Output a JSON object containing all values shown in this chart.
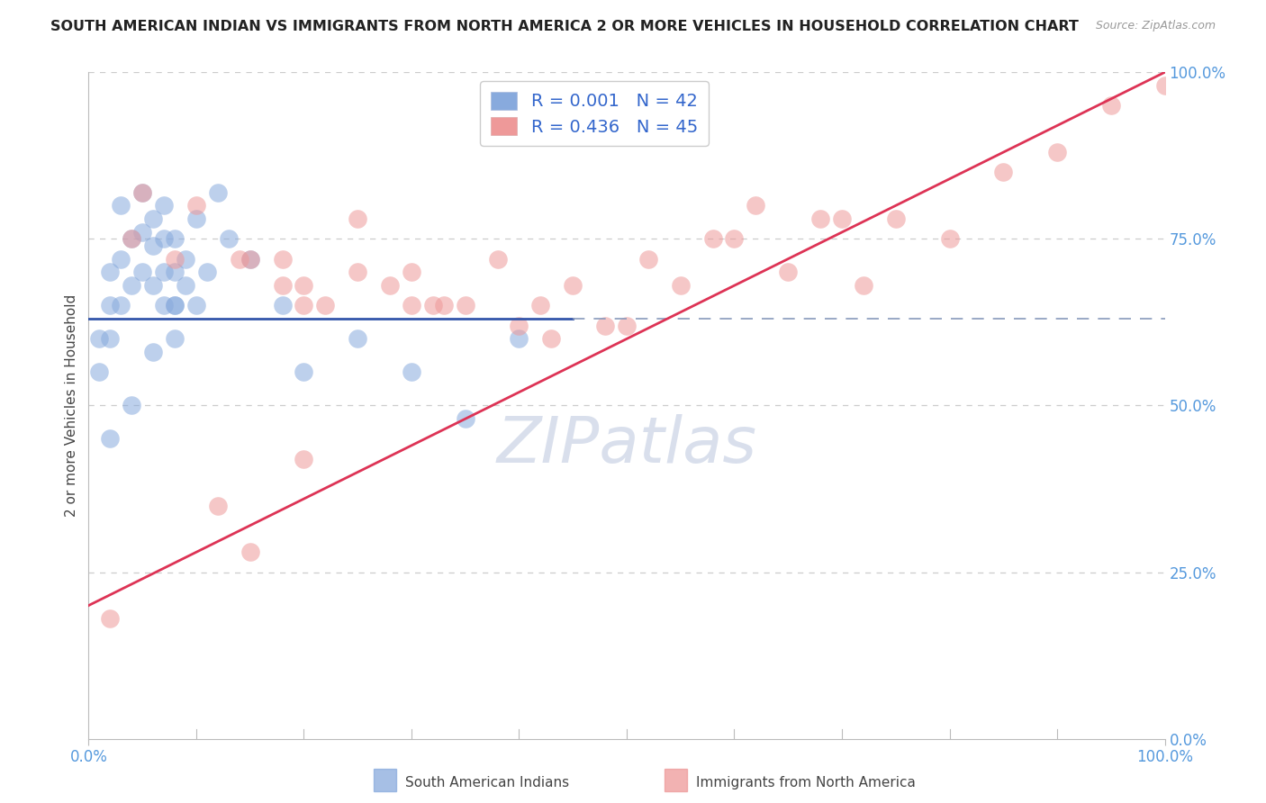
{
  "title": "SOUTH AMERICAN INDIAN VS IMMIGRANTS FROM NORTH AMERICA 2 OR MORE VEHICLES IN HOUSEHOLD CORRELATION CHART",
  "source": "Source: ZipAtlas.com",
  "ylabel": "2 or more Vehicles in Household",
  "xlim": [
    0,
    100
  ],
  "ylim": [
    0,
    100
  ],
  "ytick_labels": [
    "0.0%",
    "25.0%",
    "50.0%",
    "75.0%",
    "100.0%"
  ],
  "ytick_values": [
    0,
    25,
    50,
    75,
    100
  ],
  "legend_label1": "South American Indians",
  "legend_label2": "Immigrants from North America",
  "r1": "0.001",
  "n1": "42",
  "r2": "0.436",
  "n2": "45",
  "color1": "#88AADD",
  "color2": "#EE9999",
  "trendline1_color": "#3355AA",
  "trendline2_color": "#DD3355",
  "background_color": "#FFFFFF",
  "blue_x": [
    1,
    1,
    2,
    2,
    2,
    3,
    3,
    3,
    4,
    4,
    5,
    5,
    5,
    6,
    6,
    6,
    7,
    7,
    7,
    7,
    8,
    8,
    8,
    8,
    9,
    9,
    10,
    10,
    11,
    12,
    13,
    15,
    18,
    20,
    25,
    30,
    35,
    40,
    2,
    4,
    6,
    8
  ],
  "blue_y": [
    60,
    55,
    70,
    65,
    60,
    80,
    72,
    65,
    75,
    68,
    82,
    76,
    70,
    78,
    74,
    68,
    80,
    75,
    70,
    65,
    75,
    70,
    65,
    60,
    72,
    68,
    78,
    65,
    70,
    82,
    75,
    72,
    65,
    55,
    60,
    55,
    48,
    60,
    45,
    50,
    58,
    65
  ],
  "pink_x": [
    2,
    4,
    5,
    8,
    10,
    12,
    14,
    15,
    18,
    18,
    20,
    20,
    22,
    25,
    25,
    28,
    30,
    30,
    32,
    33,
    35,
    38,
    40,
    42,
    43,
    45,
    48,
    50,
    52,
    55,
    58,
    60,
    62,
    65,
    68,
    70,
    72,
    75,
    80,
    85,
    90,
    95,
    100,
    15,
    20
  ],
  "pink_y": [
    18,
    75,
    82,
    72,
    80,
    35,
    72,
    72,
    72,
    68,
    65,
    68,
    65,
    78,
    70,
    68,
    65,
    70,
    65,
    65,
    65,
    72,
    62,
    65,
    60,
    68,
    62,
    62,
    72,
    68,
    75,
    75,
    80,
    70,
    78,
    78,
    68,
    78,
    75,
    85,
    88,
    95,
    98,
    28,
    42
  ],
  "pink_trendline_x0": 0,
  "pink_trendline_y0": 20,
  "pink_trendline_x1": 100,
  "pink_trendline_y1": 100,
  "blue_trendline_y": 63,
  "blue_trendline_x0": 0,
  "blue_trendline_x1": 45,
  "watermark_text": "ZIPatlas",
  "watermark_fontsize": 52
}
